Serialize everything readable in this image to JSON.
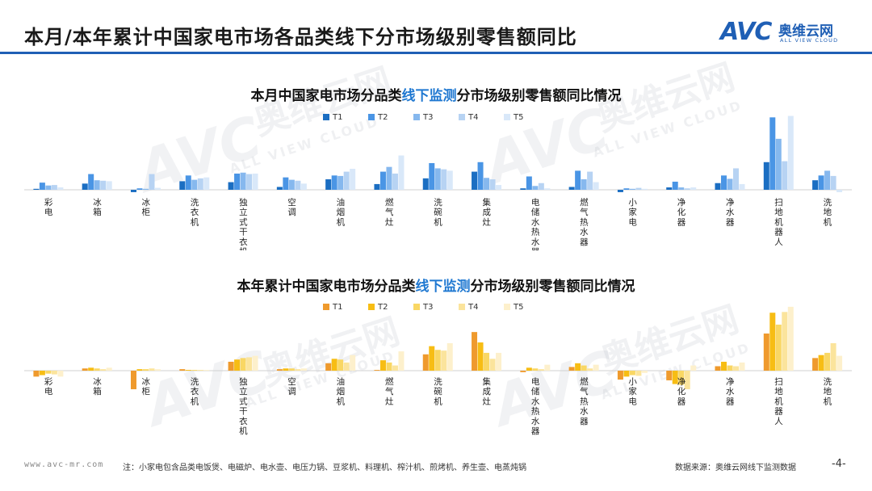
{
  "page": {
    "title": "本月/本年累计中国家电市场各品类线下分市场级别零售额同比",
    "logo_mark": "AVC",
    "logo_cn": "奥维云网",
    "logo_en": "ALL VIEW CLOUD",
    "watermark_text": "AVC",
    "watermark_cn": "奥维云网",
    "watermark_en": "ALL VIEW CLOUD",
    "footer_url": "www.avc-mr.com",
    "footer_note": "注：小家电包含品类电饭煲、电磁炉、电水壶、电压力锅、豆浆机、料理机、榨汁机、煎烤机、养生壶、电蒸炖锅",
    "footer_source": "数据来源：奥维云网线下监测数据",
    "page_number": "-4-",
    "colors": {
      "brand": "#1f5fb5",
      "highlight": "#1f78d1"
    }
  },
  "chart_titles": [
    {
      "pre": "本月中国家电市场分品类",
      "hl": "线下监测",
      "post": "分市场级别零售额同比情况"
    },
    {
      "pre": "本年累计中国家电市场分品类",
      "hl": "线下监测",
      "post": "分市场级别零售额同比情况"
    }
  ],
  "chart_data": [
    {
      "type": "bar",
      "title": "本月中国家电市场分品类线下监测分市场级别零售额同比情况",
      "categories": [
        "彩电",
        "冰箱",
        "冰柜",
        "洗衣机",
        "独立式干衣机",
        "空调",
        "油烟机",
        "燃气灶",
        "洗碗机",
        "集成灶",
        "电储水热水器",
        "燃气热水器",
        "小家电",
        "净化器",
        "净水器",
        "扫地机器人",
        "洗地机"
      ],
      "category_label_lines": [
        [
          "彩",
          "电"
        ],
        [
          "冰",
          "箱"
        ],
        [
          "冰",
          "柜"
        ],
        [
          "洗",
          "衣",
          "机"
        ],
        [
          "独",
          "立",
          "式",
          "干",
          "衣",
          "机"
        ],
        [
          "空",
          "调"
        ],
        [
          "油",
          "烟",
          "机"
        ],
        [
          "燃",
          "气",
          "灶"
        ],
        [
          "洗",
          "碗",
          "机"
        ],
        [
          "集",
          "成",
          "灶"
        ],
        [
          "电",
          "储",
          "水",
          "热",
          "水",
          "器"
        ],
        [
          "燃",
          "气",
          "热",
          "水",
          "器"
        ],
        [
          "小",
          "家",
          "电"
        ],
        [
          "净",
          "化",
          "器"
        ],
        [
          "净",
          "水",
          "器"
        ],
        [
          "扫",
          "地",
          "机",
          "器",
          "人"
        ],
        [
          "洗",
          "地",
          "机"
        ]
      ],
      "series": [
        {
          "name": "T1",
          "color": "#1b6ec2",
          "values": [
            2,
            13,
            -5,
            18,
            16,
            6,
            22,
            12,
            24,
            38,
            3,
            6,
            -5,
            5,
            14,
            58,
            20
          ]
        },
        {
          "name": "T2",
          "color": "#4a95e5",
          "values": [
            15,
            33,
            3,
            30,
            34,
            26,
            30,
            38,
            56,
            58,
            28,
            40,
            3,
            17,
            30,
            152,
            30
          ]
        },
        {
          "name": "T3",
          "color": "#86b8ee",
          "values": [
            9,
            20,
            2,
            21,
            36,
            21,
            29,
            48,
            45,
            25,
            8,
            22,
            2,
            5,
            23,
            107,
            40
          ]
        },
        {
          "name": "T4",
          "color": "#b7d3f3",
          "values": [
            10,
            19,
            33,
            24,
            33,
            19,
            38,
            34,
            43,
            22,
            14,
            38,
            4,
            3,
            45,
            60,
            29
          ]
        },
        {
          "name": "T5",
          "color": "#d9e8f9",
          "values": [
            5,
            18,
            4,
            26,
            34,
            13,
            44,
            72,
            40,
            10,
            3,
            16,
            2,
            5,
            12,
            155,
            -5
          ]
        }
      ],
      "legend": "top-center",
      "ylim": [
        -10,
        160
      ],
      "grid": false
    },
    {
      "type": "bar",
      "title": "本年累计中国家电市场分品类线下监测分市场级别零售额同比情况",
      "categories": [
        "彩电",
        "冰箱",
        "冰柜",
        "洗衣机",
        "独立式干衣机",
        "空调",
        "油烟机",
        "燃气灶",
        "洗碗机",
        "集成灶",
        "电储水热水器",
        "燃气热水器",
        "小家电",
        "净化器",
        "净水器",
        "扫地机器人",
        "洗地机"
      ],
      "category_label_lines": [
        [
          "彩",
          "电"
        ],
        [
          "冰",
          "箱"
        ],
        [
          "冰",
          "柜"
        ],
        [
          "洗",
          "衣",
          "机"
        ],
        [
          "独",
          "立",
          "式",
          "干",
          "衣",
          "机"
        ],
        [
          "空",
          "调"
        ],
        [
          "油",
          "烟",
          "机"
        ],
        [
          "燃",
          "气",
          "灶"
        ],
        [
          "洗",
          "碗",
          "机"
        ],
        [
          "集",
          "成",
          "灶"
        ],
        [
          "电",
          "储",
          "水",
          "热",
          "水",
          "器"
        ],
        [
          "燃",
          "气",
          "热",
          "水",
          "器"
        ],
        [
          "小",
          "家",
          "电"
        ],
        [
          "净",
          "化",
          "器"
        ],
        [
          "净",
          "水",
          "器"
        ],
        [
          "扫",
          "地",
          "机",
          "器",
          "人"
        ],
        [
          "洗",
          "地",
          "机"
        ]
      ],
      "series": [
        {
          "name": "T1",
          "color": "#ef9a2d",
          "values": [
            -8,
            3,
            -25,
            2,
            12,
            2,
            10,
            1,
            22,
            52,
            -2,
            5,
            -12,
            -13,
            6,
            50,
            17
          ]
        },
        {
          "name": "T2",
          "color": "#f7bd14",
          "values": [
            -6,
            4,
            2,
            1,
            15,
            3,
            16,
            14,
            33,
            38,
            4,
            10,
            -8,
            -18,
            12,
            78,
            21
          ]
        },
        {
          "name": "T3",
          "color": "#f9d764",
          "values": [
            -4,
            3,
            2,
            1,
            17,
            3,
            15,
            11,
            28,
            24,
            3,
            7,
            -6,
            -19,
            7,
            62,
            24
          ]
        },
        {
          "name": "T4",
          "color": "#fbe49c",
          "values": [
            -5,
            2,
            3,
            1,
            18,
            2,
            11,
            7,
            27,
            16,
            2,
            3,
            -7,
            -25,
            6,
            79,
            37
          ]
        },
        {
          "name": "T5",
          "color": "#fdf0cc",
          "values": [
            -8,
            4,
            2,
            1,
            20,
            3,
            21,
            26,
            37,
            24,
            8,
            8,
            -3,
            7,
            11,
            86,
            20
          ]
        }
      ],
      "legend": "top-center",
      "ylim": [
        -30,
        90
      ],
      "grid": false
    }
  ]
}
